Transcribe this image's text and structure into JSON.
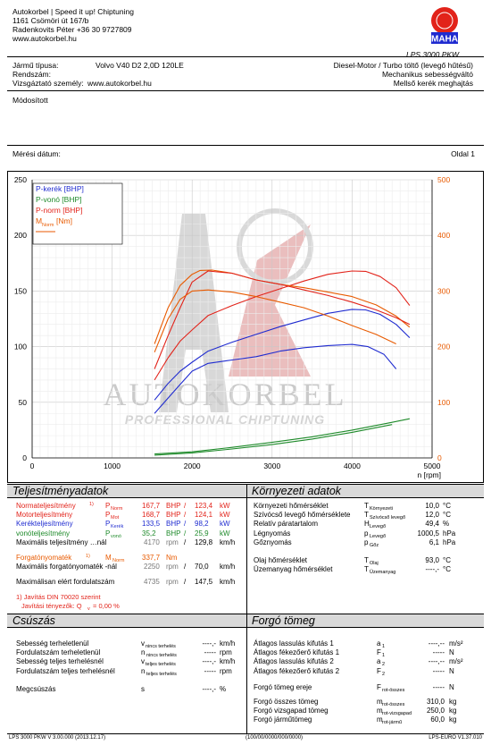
{
  "header": {
    "lines": [
      "Autokorbel | Speed it up! Chiptuning",
      "1161 Csömöri út 167/b",
      "Radenkovits Péter +36 30 9727809",
      "www.autokorbel.hu"
    ],
    "model": "LPS 3000 PKW",
    "logo_text": "MAHA"
  },
  "vehicle": {
    "type_label": "Jármű típusa:",
    "type_value": "Volvo V40 D2 2,0D 120LE",
    "reg_label": "Rendszám:",
    "tester_label": "Vizsgáztató személy:",
    "tester_value": "www.autokorbel.hu",
    "right1": "Diesel-Motor / Turbo töltő (levegő hűtésű)",
    "right2": "Mechanikus sebességváltó",
    "right3": "Mellső kerék meghajtás",
    "modified": "Módosított",
    "date_label": "Mérési dátum:",
    "page": "Oldal 1"
  },
  "legend": [
    {
      "label": "P-kerék [BHP]",
      "color": "#1f2bd0"
    },
    {
      "label": "P-vonó [BHP]",
      "color": "#1e8a2a"
    },
    {
      "label": "P-norm [BHP]",
      "color": "#e2231a"
    },
    {
      "label": "M",
      "sub": "Norm",
      "unit": "[Nm]",
      "color": "#e85a00"
    }
  ],
  "chart_data": {
    "type": "line",
    "xlabel": "n [rpm]",
    "xlim": [
      0,
      5000
    ],
    "ylim_left": [
      0,
      250
    ],
    "ylim_right": [
      0,
      500
    ],
    "x_ticks": [
      "0",
      "1000",
      "2000",
      "3000",
      "4000",
      "5000"
    ],
    "y_ticks_left": [
      "0",
      "50",
      "100",
      "150",
      "200",
      "250"
    ],
    "y_ticks_right": [
      "0",
      "100",
      "200",
      "300",
      "400",
      "500"
    ],
    "series": [
      {
        "name": "P-norm [BHP]",
        "color": "#e2231a",
        "axis": "left",
        "x": [
          1530,
          1700,
          1850,
          2000,
          2200,
          2500,
          2800,
          3100,
          3400,
          3700,
          4000,
          4170,
          4350,
          4550,
          4720
        ],
        "y": [
          70,
          90,
          105,
          115,
          128,
          137,
          145,
          152,
          159,
          165,
          168,
          167.7,
          163,
          153,
          137
        ]
      },
      {
        "name": "P-kerék [BHP]",
        "color": "#1f2bd0",
        "axis": "left",
        "x": [
          1530,
          1700,
          1850,
          2000,
          2200,
          2500,
          2800,
          3100,
          3400,
          3700,
          4000,
          4170,
          4350,
          4550,
          4720
        ],
        "y": [
          52,
          67,
          78,
          86,
          96,
          104,
          111,
          118,
          124,
          130,
          133.5,
          133,
          129,
          120,
          108
        ]
      },
      {
        "name": "P-vonó [BHP]",
        "color": "#1e8a2a",
        "axis": "left",
        "x": [
          1530,
          2000,
          2500,
          3000,
          3500,
          4000,
          4500,
          4720
        ],
        "y": [
          3.5,
          5.5,
          9.5,
          14,
          19,
          25,
          32,
          35.2
        ]
      },
      {
        "name": "M Norm [Nm]",
        "color": "#e85a00",
        "axis": "right",
        "x": [
          1530,
          1700,
          1850,
          2000,
          2100,
          2250,
          2500,
          2800,
          3100,
          3400,
          3700,
          4000,
          4300,
          4550,
          4720
        ],
        "y": [
          205,
          270,
          310,
          330,
          337,
          337.7,
          332,
          320,
          312,
          306,
          298,
          290,
          275,
          255,
          235
        ]
      },
      {
        "name": "Measured 2",
        "color": "#e2231a",
        "axis": "left",
        "x": [
          1530,
          1700,
          1850,
          2000,
          2200,
          2500,
          2800,
          3100,
          3400,
          3700,
          4000,
          4300,
          4550,
          4720
        ],
        "y": [
          80,
          110,
          135,
          158,
          168,
          166,
          160,
          156,
          151,
          146,
          140,
          133,
          126,
          120
        ]
      },
      {
        "name": "Measured 3",
        "color": "#1f2bd0",
        "axis": "left",
        "x": [
          1530,
          1800,
          2000,
          2200,
          2500,
          2800,
          3100,
          3400,
          3700,
          4000,
          4200,
          4400,
          4550
        ],
        "y": [
          40,
          62,
          78,
          85,
          88,
          91,
          96,
          99,
          101,
          102,
          100,
          93,
          80
        ]
      },
      {
        "name": "Measured 4",
        "color": "#1e8a2a",
        "axis": "left",
        "x": [
          1530,
          2000,
          2500,
          3000,
          3500,
          4000,
          4500
        ],
        "y": [
          2.5,
          4.5,
          8,
          12,
          17,
          23,
          30
        ]
      },
      {
        "name": "Measured 5",
        "color": "#e85a00",
        "axis": "right",
        "x": [
          1530,
          1700,
          1850,
          2000,
          2200,
          2500,
          2800,
          3100,
          3400,
          3700,
          4000,
          4300,
          4550
        ],
        "y": [
          190,
          250,
          285,
          300,
          302,
          298,
          290,
          280,
          270,
          255,
          238,
          222,
          205
        ]
      }
    ]
  },
  "perf": {
    "title": "Teljesítményadatok",
    "rows": [
      {
        "label": "Normateljesítmény",
        "sup": "1)",
        "sym": "P",
        "sub": "Norm",
        "v1": "167,7",
        "u1": "BHP",
        "v2": "123,4",
        "u2": "kW",
        "cls": "red"
      },
      {
        "label": "Motorteljesítmény",
        "sup": "",
        "sym": "P",
        "sub": "Mot",
        "v1": "168,7",
        "u1": "BHP",
        "v2": "124,1",
        "u2": "kW",
        "cls": "red"
      },
      {
        "label": "Kerékteljesítmény",
        "sup": "",
        "sym": "P",
        "sub": "Kerék",
        "v1": "133,5",
        "u1": "BHP",
        "v2": "98,2",
        "u2": "kW",
        "cls": "blue"
      },
      {
        "label": "vonóteljesítmény",
        "sup": "",
        "sym": "P",
        "sub": "vonó",
        "v1": "35,2",
        "u1": "BHP",
        "v2": "25,9",
        "u2": "kW",
        "cls": "green"
      }
    ],
    "max_power_label": "Maximális teljesítmény …nál",
    "max_power_rpm": "4170",
    "max_power_speed": "129,8",
    "torque_label": "Forgatónyomaték",
    "torque_sup": "1)",
    "torque_sym": "M",
    "torque_sub": "Norm",
    "torque_value": "337,7",
    "torque_unit": "Nm",
    "max_torque_label": "Maximális forgatónyomaték -nál",
    "max_torque_rpm": "2250",
    "max_torque_speed": "70,0",
    "max_rpm_label": "Maximálisan elért fordulatszám",
    "max_rpm_value": "4735",
    "max_rpm_speed": "147,5",
    "rpm_unit": "rpm",
    "sep": "/",
    "speed_unit": "km/h",
    "note1": "1) Javítás DIN 70020 szerint",
    "note2": "Javítási tényezők: Q",
    "note2_sub": "v",
    "note2_value": "=     0,00 %"
  },
  "env": {
    "title": "Környezeti adatok",
    "rows": [
      {
        "label": "Környezeti hőmérséklet",
        "sym": "T",
        "sub": "Környezeti",
        "value": "10,0",
        "unit": "°C"
      },
      {
        "label": "Szívócső levegő hőmérséklete",
        "sym": "T",
        "sub": "Szívócső levegő",
        "value": "12,0",
        "unit": "°C"
      },
      {
        "label": "Relatív páratartalom",
        "sym": "H",
        "sub": "Levegő",
        "value": "49,4",
        "unit": "%"
      },
      {
        "label": "Légnyomás",
        "sym": "p",
        "sub": "Levegő",
        "value": "1000,5",
        "unit": "hPa"
      },
      {
        "label": "Gőznyomás",
        "sym": "p",
        "sub": "Gőz",
        "value": "6,1",
        "unit": "hPa"
      },
      {
        "label": "Olaj hőmérséklet",
        "sym": "T",
        "sub": "Olaj",
        "value": "93,0",
        "unit": "°C"
      },
      {
        "label": "Üzemanyag hőmérséklet",
        "sym": "T",
        "sub": "Üzemanyag",
        "value": "----,-",
        "unit": "°C"
      }
    ]
  },
  "slip": {
    "title": "Csúszás",
    "rows": [
      {
        "label": "Sebesség terheletlenül",
        "sym": "v",
        "sub": "nincs terhelés",
        "value": "----,-",
        "unit": "km/h"
      },
      {
        "label": "Fordulatszám terheletlenül",
        "sym": "n",
        "sub": "nincs terhelés",
        "value": "-----",
        "unit": "rpm"
      },
      {
        "label": "Sebesség teljes terhelésnél",
        "sym": "v",
        "sub": "teljes terhelés",
        "value": "----,-",
        "unit": "km/h"
      },
      {
        "label": "Fordulatszám teljes terhelésnél",
        "sym": "n",
        "sub": "teljes terhelés",
        "value": "-----",
        "unit": "rpm"
      },
      {
        "label": "Megcsúszás",
        "sym": "s",
        "sub": "",
        "value": "----,-",
        "unit": "%"
      }
    ]
  },
  "inertia": {
    "title": "Forgó tömeg",
    "rows": [
      {
        "label": "Átlagos lassulás kifutás 1",
        "sym": "a",
        "sub": "1",
        "value": "----,--",
        "unit": "m/s²"
      },
      {
        "label": "Átlagos fékezőerő kifutás 1",
        "sym": "F",
        "sub": "1",
        "value": "-----",
        "unit": "N"
      },
      {
        "label": "Átlagos lassulás kifutás 2",
        "sym": "a",
        "sub": "2",
        "value": "----,--",
        "unit": "m/s²"
      },
      {
        "label": "Átlagos fékezőerő kifutás 2",
        "sym": "F",
        "sub": "2",
        "value": "-----",
        "unit": "N"
      },
      {
        "label": "Forgó tömeg ereje",
        "sym": "F",
        "sub": "rot-összes",
        "value": "-----",
        "unit": "N"
      },
      {
        "label": "Forgó összes tömeg",
        "sym": "m",
        "sub": "rot-összes",
        "value": "310,0",
        "unit": "kg"
      },
      {
        "label": "Forgó vizsgapad tömeg",
        "sym": "m",
        "sub": "rot-vizsgapad",
        "value": "250,0",
        "unit": "kg"
      },
      {
        "label": "Forgó járműtömeg",
        "sym": "m",
        "sub": "rot-jármű",
        "value": "60,0",
        "unit": "kg"
      }
    ]
  },
  "watermark": {
    "line1": "AUTOKORBEL",
    "line2": "PROFESSIONAL CHIPTUNING"
  },
  "footer": {
    "left": "LPS 3000 PKW V 3.00.000 (2013.12.17)",
    "center": "(100/00/0000/000/0000)",
    "right": "LPS-EURO V1.37.010"
  }
}
